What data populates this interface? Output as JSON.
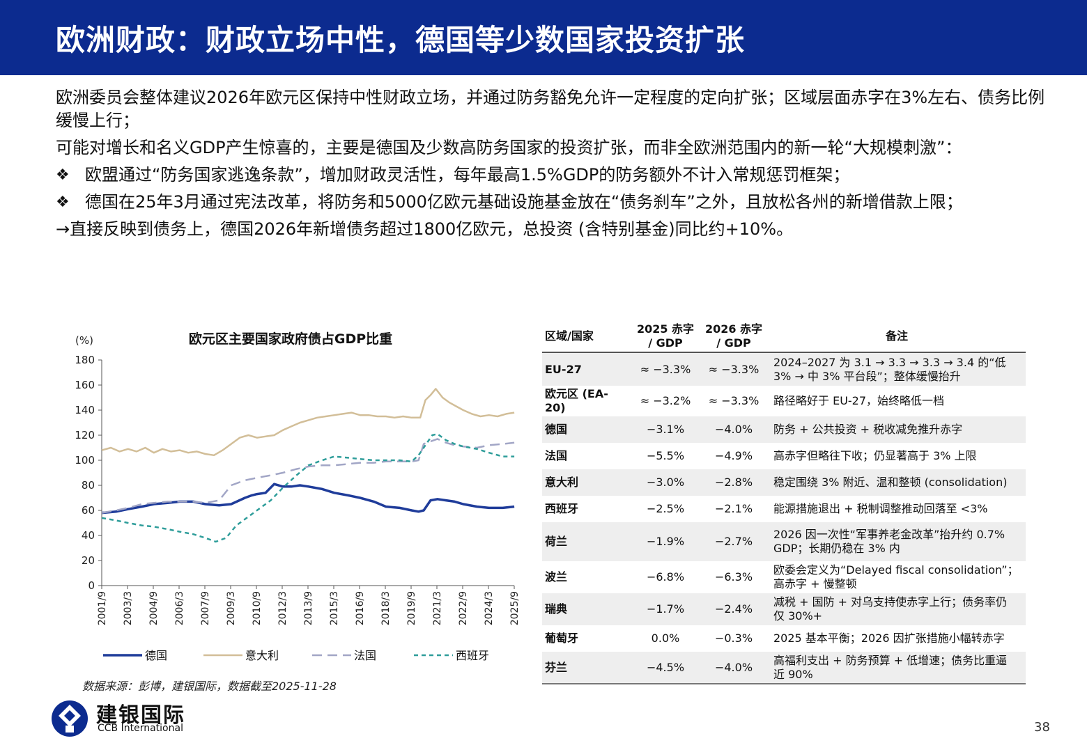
{
  "header": {
    "title": "欧洲财政：财政立场中性，德国等少数国家投资扩张"
  },
  "body": {
    "para1": "欧洲委员会整体建议2026年欧元区保持中性财政立场，并通过防务豁免允许一定程度的定向扩张；区域层面赤字在3%左右、债务比例缓慢上行；",
    "para2": "可能对增长和名义GDP产生惊喜的，主要是德国及少数高防务国家的投资扩张，而非全欧洲范围内的新一轮“大规模刺激”：",
    "bullet_mark": "❖",
    "bullet1": "欧盟通过“防务国家逃逸条款”，增加财政灵活性，每年最高1.5%GDP的防务额外不计入常规惩罚框架；",
    "bullet2": "德国在25年3月通过宪法改革，将防务和5000亿欧元基础设施基金放在“债务刹车”之外，且放松各州的新增借款上限；",
    "conclusion": "→直接反映到债务上，德国2026年新增债务超过1800亿欧元，总投资 (含特别基金)同比约+10%。"
  },
  "chart_data": {
    "type": "line",
    "title": "欧元区主要国家政府债占GDP比重",
    "ylabel": "(%)",
    "xlabel": "",
    "ylim": [
      0,
      180
    ],
    "yticks": [
      0,
      20,
      40,
      60,
      80,
      100,
      120,
      140,
      160,
      180
    ],
    "xlim": [
      2001.667,
      2025.667
    ],
    "x_tick_labels": [
      "2001/9",
      "2003/3",
      "2004/9",
      "2006/3",
      "2007/9",
      "2009/3",
      "2010/9",
      "2012/3",
      "2013/9",
      "2015/3",
      "2016/9",
      "2018/3",
      "2019/9",
      "2021/3",
      "2022/9",
      "2024/3",
      "2025/9"
    ],
    "x_tick_positions": [
      2001.667,
      2003.167,
      2004.667,
      2006.167,
      2007.667,
      2009.167,
      2010.667,
      2012.167,
      2013.667,
      2015.167,
      2016.667,
      2018.167,
      2019.667,
      2021.167,
      2022.667,
      2024.167,
      2025.667
    ],
    "legend_position": "bottom",
    "series": [
      {
        "name": "德国",
        "color": "#1f3c9a",
        "dash": "solid",
        "x": [
          2001.67,
          2002.5,
          2003.2,
          2004,
          2004.7,
          2005.5,
          2006.2,
          2007,
          2007.7,
          2008.5,
          2009.2,
          2010,
          2010.4,
          2010.7,
          2011.2,
          2011.7,
          2012.2,
          2012.7,
          2013.2,
          2013.7,
          2014.5,
          2015.2,
          2016,
          2016.7,
          2017.5,
          2018.2,
          2019,
          2019.7,
          2020.1,
          2020.4,
          2020.8,
          2021.2,
          2021.7,
          2022.2,
          2022.7,
          2023.5,
          2024.2,
          2025,
          2025.67
        ],
        "y": [
          58,
          59,
          61,
          63,
          65,
          66,
          67,
          67,
          65,
          64,
          65,
          70,
          72,
          73,
          74,
          81,
          79,
          79,
          80,
          79,
          77,
          74,
          72,
          70,
          67,
          63,
          62,
          60,
          59,
          60,
          68,
          69,
          68,
          67,
          65,
          63,
          62,
          62,
          63
        ]
      },
      {
        "name": "意大利",
        "color": "#d2be98",
        "dash": "solid",
        "x": [
          2001.67,
          2002.2,
          2002.7,
          2003.2,
          2003.7,
          2004.2,
          2004.7,
          2005.2,
          2005.7,
          2006.2,
          2006.7,
          2007.2,
          2007.7,
          2008.2,
          2008.7,
          2009.2,
          2009.7,
          2010.2,
          2010.7,
          2011.2,
          2011.7,
          2012.2,
          2012.7,
          2013.2,
          2013.7,
          2014.2,
          2014.7,
          2015.2,
          2015.7,
          2016.2,
          2016.7,
          2017.2,
          2017.7,
          2018.2,
          2018.7,
          2019.2,
          2019.7,
          2020.2,
          2020.5,
          2020.8,
          2021.1,
          2021.5,
          2021.9,
          2022.3,
          2022.7,
          2023.2,
          2023.7,
          2024.2,
          2024.7,
          2025.2,
          2025.67
        ],
        "y": [
          108,
          110,
          107,
          109,
          107,
          110,
          106,
          109,
          107,
          108,
          106,
          107,
          105,
          104,
          108,
          113,
          118,
          120,
          118,
          119,
          120,
          124,
          127,
          130,
          132,
          134,
          135,
          136,
          137,
          138,
          136,
          136,
          135,
          135,
          134,
          135,
          134,
          134,
          148,
          152,
          157,
          150,
          146,
          143,
          140,
          137,
          135,
          136,
          135,
          137,
          138
        ]
      },
      {
        "name": "法国",
        "color": "#a2a6c6",
        "dash": "long",
        "x": [
          2001.67,
          2002.5,
          2003.2,
          2004,
          2004.7,
          2005.5,
          2006.2,
          2007,
          2007.7,
          2008.5,
          2009.2,
          2010,
          2010.7,
          2011.5,
          2012.2,
          2013,
          2013.7,
          2014.5,
          2015.2,
          2016,
          2016.7,
          2017.5,
          2018.2,
          2019,
          2019.7,
          2020.1,
          2020.4,
          2020.8,
          2021.2,
          2021.7,
          2022.2,
          2022.7,
          2023.5,
          2024.2,
          2025,
          2025.67
        ],
        "y": [
          58,
          60,
          62,
          65,
          66,
          67,
          67,
          67,
          66,
          68,
          80,
          84,
          86,
          88,
          90,
          93,
          95,
          96,
          96,
          97,
          98,
          98,
          99,
          99,
          99,
          100,
          113,
          115,
          117,
          114,
          112,
          111,
          110,
          112,
          113,
          114
        ]
      },
      {
        "name": "西班牙",
        "color": "#2e9d9a",
        "dash": "short",
        "x": [
          2001.67,
          2002.5,
          2003.2,
          2004,
          2004.7,
          2005.5,
          2006.2,
          2007,
          2007.7,
          2008.3,
          2008.9,
          2009.5,
          2010.2,
          2010.7,
          2011.5,
          2012.2,
          2013,
          2013.7,
          2014.5,
          2015.2,
          2016,
          2016.7,
          2017.5,
          2018.2,
          2019,
          2019.7,
          2020.1,
          2020.5,
          2020.9,
          2021.2,
          2021.7,
          2022.2,
          2022.7,
          2023.5,
          2024.2,
          2025,
          2025.67
        ],
        "y": [
          54,
          52,
          50,
          48,
          47,
          45,
          43,
          41,
          38,
          35,
          38,
          48,
          55,
          60,
          68,
          78,
          88,
          96,
          100,
          103,
          102,
          101,
          100,
          100,
          100,
          99,
          104,
          112,
          120,
          121,
          116,
          113,
          111,
          109,
          106,
          103,
          103
        ]
      }
    ]
  },
  "table": {
    "headers": [
      "区域/国家",
      "2025 赤字 / GDP",
      "2026 赤字 / GDP",
      "备注"
    ],
    "header_lines": {
      "h2a": "2025 赤字",
      "h2b": "/ GDP",
      "h3a": "2026 赤字",
      "h3b": "/ GDP"
    },
    "rows": [
      {
        "region": "EU-27",
        "d2025": "≈ −3.3%",
        "d2026": "≈ −3.3%",
        "note1": "2024–2027 为 3.1 → 3.3 → 3.3 → 3.4 的“低",
        "note2": "3% → 中 3% 平台段”；整体缓慢抬升"
      },
      {
        "region": "欧元区 (EA-20)",
        "d2025": "≈ −3.2%",
        "d2026": "≈ −3.3%",
        "note1": "路径略好于 EU-27，始终略低一档",
        "note2": ""
      },
      {
        "region": "德国",
        "d2025": "−3.1%",
        "d2026": "−4.0%",
        "note1": "防务 + 公共投资 + 税收减免推升赤字",
        "note2": ""
      },
      {
        "region": "法国",
        "d2025": "−5.5%",
        "d2026": "−4.9%",
        "note1": "高赤字但略往下收；仍显著高于 3% 上限",
        "note2": ""
      },
      {
        "region": "意大利",
        "d2025": "−3.0%",
        "d2026": "−2.8%",
        "note1": "稳定围绕 3% 附近、温和整顿 (consolidation)",
        "note2": ""
      },
      {
        "region": "西班牙",
        "d2025": "−2.5%",
        "d2026": "−2.1%",
        "note1": "能源措施退出 + 税制调整推动回落至 <3%",
        "note2": ""
      },
      {
        "region": "荷兰",
        "d2025": "−1.9%",
        "d2026": "−2.7%",
        "note1": "2026 因一次性“军事养老金改革”抬升约 0.7%",
        "note2": "GDP；长期仍稳在 3% 内"
      },
      {
        "region": "波兰",
        "d2025": "−6.8%",
        "d2026": "−6.3%",
        "note1": "欧委会定义为“Delayed fiscal consolidation”；",
        "note2": "高赤字 + 慢整顿"
      },
      {
        "region": "瑞典",
        "d2025": "−1.7%",
        "d2026": "−2.4%",
        "note1": "减税 + 国防 + 对乌支持使赤字上行；债务率仍",
        "note2": "仅 30%+"
      },
      {
        "region": "葡萄牙",
        "d2025": "0.0%",
        "d2026": "−0.3%",
        "note1": "2025 基本平衡；2026 因扩张措施小幅转赤字",
        "note2": ""
      },
      {
        "region": "芬兰",
        "d2025": "−4.5%",
        "d2026": "−4.0%",
        "note1": "高福利支出 + 防务预算 + 低增速；债务比重逼",
        "note2": "近 90%"
      }
    ]
  },
  "source": "数据来源：彭博，建银国际，数据截至2025-11-28",
  "footer": {
    "logo_cn": "建银国际",
    "logo_en": "CCB International",
    "page_number": "38",
    "brand_color": "#0c2b8f"
  }
}
